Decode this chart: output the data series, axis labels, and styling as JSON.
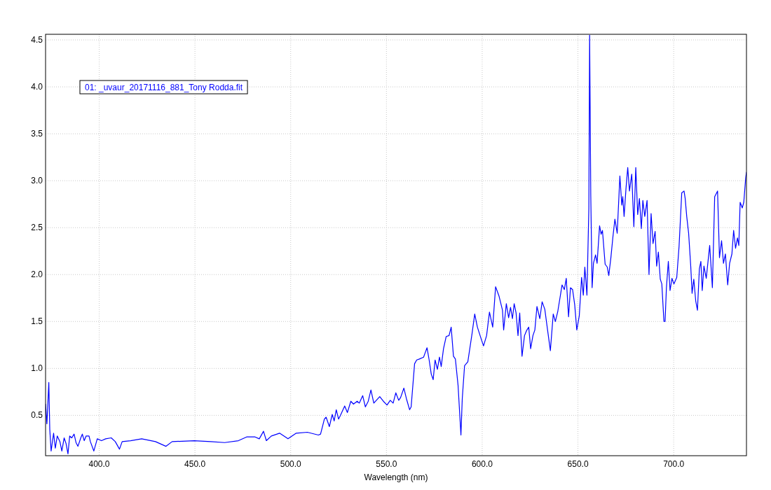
{
  "chart_data": {
    "type": "line",
    "xlabel": "Wavelength (nm)",
    "x": [
      372.0,
      372.7,
      373.7,
      374.2,
      374.9,
      376.2,
      377.1,
      378.1,
      379.5,
      380.5,
      381.7,
      382.7,
      383.7,
      384.6,
      385.7,
      386.9,
      387.9,
      388.9,
      390.4,
      391.2,
      392.2,
      393.2,
      394.7,
      395.4,
      397.2,
      399.0,
      401.2,
      403.4,
      406.3,
      408.4,
      410.6,
      412.0,
      416.4,
      422.2,
      429.4,
      434.9,
      438.1,
      449.6,
      458.3,
      465.5,
      472.7,
      477.0,
      481.4,
      483.6,
      485.8,
      487.3,
      489.9,
      494.2,
      498.6,
      502.9,
      508.7,
      514.5,
      515.6,
      517.6,
      518.5,
      520.2,
      521.7,
      522.7,
      523.8,
      525.0,
      526.0,
      528.2,
      529.6,
      531.4,
      532.8,
      534.7,
      535.8,
      537.6,
      539.0,
      540.5,
      541.9,
      543.4,
      546.5,
      548.4,
      550.3,
      552.0,
      553.5,
      554.9,
      556.4,
      557.4,
      559.1,
      560.4,
      562.1,
      562.9,
      564.7,
      565.8,
      567.2,
      569.4,
      570.1,
      571.2,
      572.3,
      573.4,
      574.4,
      575.4,
      576.6,
      577.7,
      578.6,
      579.8,
      581.2,
      582.7,
      583.8,
      585.0,
      586.0,
      587.4,
      588.9,
      589.6,
      590.8,
      592.5,
      594.7,
      596.1,
      597.5,
      599.7,
      600.7,
      602.3,
      603.8,
      605.5,
      607.0,
      608.8,
      610.6,
      611.2,
      612.6,
      613.8,
      614.8,
      615.8,
      616.7,
      617.7,
      618.7,
      619.6,
      620.8,
      622.1,
      623.1,
      624.3,
      625.3,
      626.5,
      627.5,
      628.6,
      630.1,
      631.3,
      632.7,
      634.0,
      635.6,
      637.1,
      638.2,
      639.5,
      641.0,
      641.7,
      642.9,
      643.9,
      645.1,
      646.1,
      647.2,
      648.3,
      649.4,
      650.7,
      651.9,
      652.8,
      653.6,
      654.7,
      655.7,
      656.1,
      656.7,
      657.4,
      658.1,
      659.2,
      660.0,
      661.3,
      662.1,
      662.8,
      664.2,
      665.3,
      666.1,
      667.2,
      668.2,
      669.3,
      670.5,
      671.9,
      672.9,
      673.4,
      674.1,
      675.1,
      676.0,
      676.9,
      678.1,
      679.2,
      680.2,
      681.2,
      682.1,
      683.1,
      683.9,
      684.9,
      686.1,
      687.1,
      688.2,
      689.2,
      690.3,
      691.1,
      692.0,
      693.0,
      693.8,
      694.9,
      695.5,
      696.2,
      697.2,
      698.1,
      699.1,
      700.1,
      701.6,
      702.8,
      704.2,
      705.4,
      706.0,
      706.8,
      707.8,
      708.9,
      709.6,
      710.5,
      711.5,
      712.4,
      713.4,
      714.2,
      714.9,
      715.8,
      717.0,
      718.8,
      720.2,
      721.4,
      722.9,
      723.9,
      725.0,
      726.0,
      727.0,
      728.2,
      729.2,
      730.4,
      731.3,
      732.3,
      733.3,
      734.0,
      734.7,
      735.8,
      736.6,
      737.6,
      738.0
    ],
    "series": [
      {
        "name": "01: _uvaur_20171116_881_Tony Rodda.fit",
        "color": "#0000ff",
        "values": [
          0.62,
          0.41,
          0.85,
          0.35,
          0.12,
          0.31,
          0.15,
          0.28,
          0.22,
          0.12,
          0.26,
          0.2,
          0.09,
          0.28,
          0.26,
          0.3,
          0.21,
          0.17,
          0.26,
          0.3,
          0.23,
          0.28,
          0.28,
          0.22,
          0.12,
          0.25,
          0.23,
          0.25,
          0.26,
          0.22,
          0.14,
          0.22,
          0.23,
          0.25,
          0.22,
          0.17,
          0.22,
          0.23,
          0.22,
          0.21,
          0.23,
          0.27,
          0.27,
          0.25,
          0.33,
          0.23,
          0.28,
          0.31,
          0.25,
          0.31,
          0.32,
          0.29,
          0.3,
          0.46,
          0.48,
          0.38,
          0.51,
          0.44,
          0.56,
          0.46,
          0.5,
          0.6,
          0.53,
          0.65,
          0.62,
          0.65,
          0.63,
          0.71,
          0.59,
          0.65,
          0.77,
          0.63,
          0.7,
          0.65,
          0.61,
          0.66,
          0.63,
          0.74,
          0.66,
          0.69,
          0.79,
          0.68,
          0.56,
          0.59,
          1.05,
          1.09,
          1.1,
          1.12,
          1.16,
          1.22,
          1.09,
          0.94,
          0.88,
          1.09,
          0.99,
          1.12,
          1.02,
          1.21,
          1.34,
          1.35,
          1.44,
          1.13,
          1.1,
          0.82,
          0.29,
          0.68,
          1.03,
          1.07,
          1.37,
          1.58,
          1.44,
          1.3,
          1.24,
          1.35,
          1.6,
          1.44,
          1.87,
          1.77,
          1.62,
          1.41,
          1.69,
          1.54,
          1.65,
          1.53,
          1.69,
          1.59,
          1.35,
          1.59,
          1.13,
          1.35,
          1.4,
          1.44,
          1.21,
          1.35,
          1.41,
          1.66,
          1.53,
          1.71,
          1.63,
          1.43,
          1.19,
          1.58,
          1.5,
          1.61,
          1.8,
          1.89,
          1.84,
          1.96,
          1.55,
          1.86,
          1.84,
          1.68,
          1.41,
          1.56,
          1.97,
          1.78,
          2.08,
          1.78,
          2.71,
          4.55,
          2.84,
          1.86,
          2.12,
          2.21,
          2.12,
          2.52,
          2.43,
          2.47,
          2.11,
          2.08,
          1.99,
          2.18,
          2.39,
          2.59,
          2.44,
          3.05,
          2.74,
          2.83,
          2.62,
          2.92,
          3.14,
          2.89,
          3.07,
          2.51,
          3.14,
          2.64,
          2.81,
          2.49,
          2.79,
          2.62,
          2.79,
          2.0,
          2.65,
          2.33,
          2.46,
          2.09,
          2.24,
          1.95,
          1.9,
          1.5,
          1.5,
          1.86,
          2.14,
          1.83,
          1.96,
          1.9,
          1.97,
          2.3,
          2.87,
          2.89,
          2.81,
          2.62,
          2.44,
          2.09,
          1.8,
          1.95,
          1.72,
          1.62,
          2.06,
          2.14,
          1.83,
          2.09,
          1.96,
          2.31,
          1.86,
          2.83,
          2.89,
          2.18,
          2.36,
          2.12,
          2.22,
          1.89,
          2.12,
          2.22,
          2.47,
          2.28,
          2.39,
          2.31,
          2.77,
          2.71,
          2.77,
          3.03,
          3.09
        ]
      }
    ],
    "xlim": [
      372,
      738
    ],
    "ylim": [
      0.07,
      4.56
    ],
    "xticks": [
      {
        "value": 400,
        "label": "400.0"
      },
      {
        "value": 450,
        "label": "450.0"
      },
      {
        "value": 500,
        "label": "500.0"
      },
      {
        "value": 550,
        "label": "550.0"
      },
      {
        "value": 600,
        "label": "600.0"
      },
      {
        "value": 650,
        "label": "650.0"
      },
      {
        "value": 700,
        "label": "700.0"
      }
    ],
    "yticks": [
      0.5,
      {
        "value": 1,
        "label": "1.0"
      },
      1.5,
      {
        "value": 2,
        "label": "2.0"
      },
      2.5,
      {
        "value": 3,
        "label": "3.0"
      },
      3.5,
      {
        "value": 4,
        "label": "4.0"
      },
      4.5
    ],
    "grid": true,
    "legend": "top left"
  }
}
